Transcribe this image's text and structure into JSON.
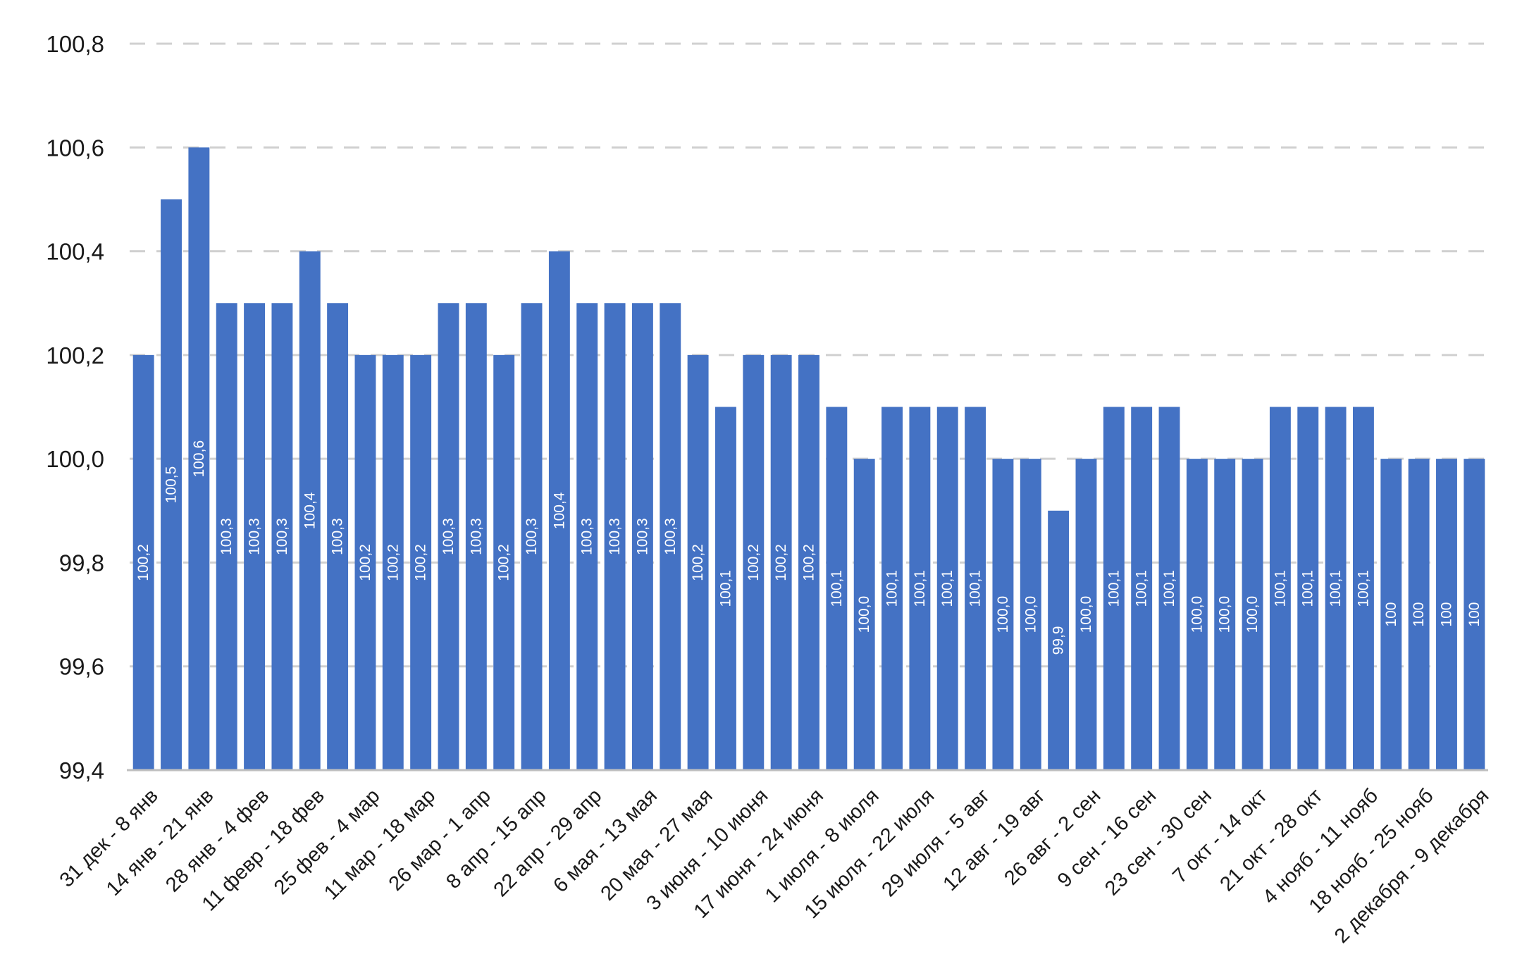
{
  "chart_data": {
    "type": "bar",
    "title": "",
    "xlabel": "",
    "ylabel": "",
    "ylim": [
      99.4,
      100.8
    ],
    "yticks": [
      "99,4",
      "99,6",
      "99,8",
      "100,0",
      "100,2",
      "100,4",
      "100,6",
      "100,8"
    ],
    "ytick_values": [
      99.4,
      99.6,
      99.8,
      100.0,
      100.2,
      100.4,
      100.6,
      100.8
    ],
    "grid": true,
    "legend": "none",
    "colors": {
      "bar": "#4472c4",
      "grid": "#d0d0d0",
      "label": "#ffffff"
    },
    "categories": [
      "31 дек - 8 янв",
      "",
      "14 янв - 21 янв",
      "",
      "28 янв - 4 фев",
      "",
      "11 февр - 18 фев",
      "",
      "25 фев - 4 мар",
      "",
      "11 мар - 18 мар",
      "",
      "26 мар - 1 апр",
      "",
      "8 апр - 15 апр",
      "",
      "22 апр - 29 апр",
      "",
      "6 мая - 13 мая",
      "",
      "20 мая - 27 мая",
      "",
      "3 июня - 10 июня",
      "",
      "17 июня - 24 июня",
      "",
      "1 июля - 8 июля",
      "",
      "15 июля - 22 июля",
      "",
      "29 июля - 5 авг",
      "",
      "12 авг - 19 авг",
      "",
      "26 авг - 2 сен",
      "",
      "9 сен - 16 сен",
      "",
      "23 сен - 30 сен",
      "",
      "7 окт - 14 окт",
      "",
      "21 окт - 28 окт",
      "",
      "4 нояб - 11 нояб",
      "",
      "18 нояб - 25 нояб",
      "",
      "2 декабря - 9 декабря"
    ],
    "values": [
      100.2,
      100.5,
      100.6,
      100.3,
      100.3,
      100.3,
      100.4,
      100.3,
      100.2,
      100.2,
      100.2,
      100.3,
      100.3,
      100.2,
      100.3,
      100.4,
      100.3,
      100.3,
      100.3,
      100.3,
      100.2,
      100.1,
      100.2,
      100.2,
      100.2,
      100.1,
      100.0,
      100.1,
      100.1,
      100.1,
      100.1,
      100.0,
      100.0,
      99.9,
      100.0,
      100.1,
      100.1,
      100.1,
      100.0,
      100.0,
      100.0,
      100.1,
      100.1,
      100.1,
      100.1,
      100.0,
      100.0,
      100.0,
      100.0
    ],
    "data_labels": [
      "100,2",
      "100,5",
      "100,6",
      "100,3",
      "100,3",
      "100,3",
      "100,4",
      "100,3",
      "100,2",
      "100,2",
      "100,2",
      "100,3",
      "100,3",
      "100,2",
      "100,3",
      "100,4",
      "100,3",
      "100,3",
      "100,3",
      "100,3",
      "100,2",
      "100,1",
      "100,2",
      "100,2",
      "100,2",
      "100,1",
      "100,0",
      "100,1",
      "100,1",
      "100,1",
      "100,1",
      "100,0",
      "100,0",
      "99,9",
      "100,0",
      "100,1",
      "100,1",
      "100,1",
      "100,0",
      "100,0",
      "100,0",
      "100,1",
      "100,1",
      "100,1",
      "100,1",
      "100",
      "100",
      "100",
      "100"
    ]
  }
}
